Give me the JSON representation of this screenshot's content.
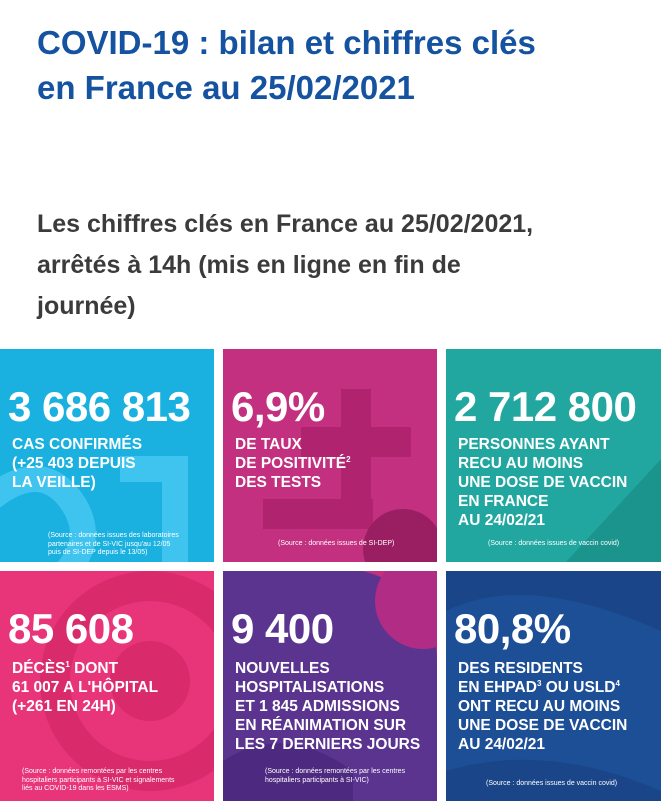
{
  "header": {
    "title_line1": "COVID-19 : bilan et chiffres clés",
    "title_line2": "en France au 25/02/2021"
  },
  "intro": {
    "line1": "Les chiffres clés en France au 25/02/2021,",
    "line2": "arrêtés à 14h (mis en ligne en fin de",
    "line3": "journée)"
  },
  "tiles": {
    "cases": {
      "color": "#1ab0e0",
      "value": "3 686 813",
      "lines": [
        "CAS CONFIRMÉS",
        "(+25 403 DEPUIS",
        "LA VEILLE)"
      ],
      "source": [
        "(Source : données issues des laboratoires",
        "partenaires et de SI-VIC jusqu'au 12/05",
        "puis de SI-DEP depuis le 13/05)"
      ]
    },
    "positivity": {
      "color": "#c2307f",
      "value": "6,9%",
      "line1": "DE TAUX",
      "line2": "DE POSITIVITÉ",
      "line2_sup": "2",
      "line3": "DES TESTS",
      "source": "(Source : données issues de SI-DEP)"
    },
    "vaccine": {
      "color": "#22a7a0",
      "value": "2 712 800",
      "lines": [
        "PERSONNES AYANT",
        "RECU AU MOINS",
        "UNE DOSE DE VACCIN",
        "EN FRANCE",
        "AU 24/02/21"
      ],
      "source": "(Source : données issues de vaccin covid)"
    },
    "deaths": {
      "color": "#e8357a",
      "value": "85 608",
      "line1": "DÉCÈS",
      "line1_sup": "1",
      "line1_rest": " DONT",
      "line2": "61 007 A L'HÔPITAL",
      "line3": "(+261 EN 24H)",
      "source": [
        "(Source : données remontées par les centres",
        "hospitaliers participants à SI-VIC et signalements",
        "liés au COVID-19 dans les ESMS)"
      ]
    },
    "hospital": {
      "color": "#5b3490",
      "value": "9 400",
      "lines": [
        "NOUVELLES",
        "HOSPITALISATIONS",
        "ET 1 845 ADMISSIONS",
        "EN RÉANIMATION SUR",
        "LES 7 DERNIERS JOURS"
      ],
      "source": [
        "(Source : données remontées par les centres",
        "hospitaliers participants à SI-VIC)"
      ]
    },
    "ehpad": {
      "color": "#1d4f97",
      "value": "80,8%",
      "line1": "DES RESIDENTS",
      "line2a": "EN EHPAD",
      "line2a_sup": "3",
      "line2b": " OU USLD",
      "line2b_sup": "4",
      "line3": "ONT RECU AU MOINS",
      "line4": "UNE DOSE DE VACCIN",
      "line5": "AU 24/02/21",
      "source": "(Source : données issues de vaccin covid)"
    }
  }
}
